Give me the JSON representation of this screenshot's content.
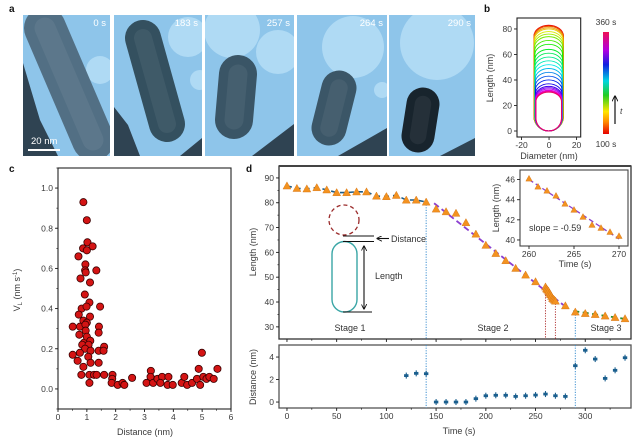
{
  "figure": {
    "panel_a": {
      "label": "a",
      "frames": [
        {
          "time": "0 s"
        },
        {
          "time": "183 s"
        },
        {
          "time": "257 s"
        },
        {
          "time": "264 s"
        },
        {
          "time": "290 s"
        }
      ],
      "scale_bar_label": "20 nm"
    },
    "panel_b": {
      "label": "b"
    },
    "panel_c": {
      "label": "c"
    },
    "panel_d": {
      "label": "d",
      "annotations": {
        "distance": "Distance",
        "length": "Length",
        "stage1": "Stage 1",
        "stage2": "Stage 2",
        "stage3": "Stage 3",
        "slope": "slope = -0.59"
      }
    }
  },
  "colors": {
    "tem_background": "#8ec5ea",
    "scatter_fill": "#d41414",
    "triangle": "#f39220",
    "stage1_line": "#1d5d8a",
    "stage2_fit": "#8b3fd0",
    "stage3_fit": "#2f8f2f",
    "stage_boundary": "#3c8fd0",
    "inset_window": "#b23a3a",
    "distance_marker": "#1a5f8e",
    "capsule": "#3aa6a6",
    "target_circle": "#9b2b2b"
  },
  "chart_data": [
    {
      "id": "b",
      "type": "line",
      "title": "",
      "xlabel": "Diameter (nm)",
      "ylabel": "Length (nm)",
      "xlim": [
        -23.3,
        23
      ],
      "ylim": [
        -4.7,
        88.6
      ],
      "xticks": [
        -20,
        0,
        20
      ],
      "yticks": [
        0,
        20,
        40,
        60,
        80
      ],
      "colorbar": {
        "min": 100,
        "max": 360,
        "min_label": "100 s",
        "max_label": "360 s",
        "arrow_label": "t"
      },
      "contours": [
        {
          "time": 100,
          "length": 83.0,
          "half_width": 11.0
        },
        {
          "time": 110,
          "length": 82.5,
          "half_width": 11.0
        },
        {
          "time": 120,
          "length": 82.0,
          "half_width": 10.9
        },
        {
          "time": 130,
          "length": 81.0,
          "half_width": 10.8
        },
        {
          "time": 140,
          "length": 80.0,
          "half_width": 10.7
        },
        {
          "time": 150,
          "length": 78.0,
          "half_width": 10.6
        },
        {
          "time": 160,
          "length": 76.0,
          "half_width": 10.5
        },
        {
          "time": 170,
          "length": 74.0,
          "half_width": 10.5
        },
        {
          "time": 180,
          "length": 71.0,
          "half_width": 10.4
        },
        {
          "time": 190,
          "length": 68.0,
          "half_width": 10.3
        },
        {
          "time": 200,
          "length": 64.0,
          "half_width": 10.3
        },
        {
          "time": 210,
          "length": 61.0,
          "half_width": 10.2
        },
        {
          "time": 220,
          "length": 58.0,
          "half_width": 10.2
        },
        {
          "time": 230,
          "length": 55.0,
          "half_width": 10.1
        },
        {
          "time": 240,
          "length": 52.0,
          "half_width": 10.1
        },
        {
          "time": 250,
          "length": 49.0,
          "half_width": 10.0
        },
        {
          "time": 260,
          "length": 46.0,
          "half_width": 10.0
        },
        {
          "time": 270,
          "length": 43.0,
          "half_width": 10.0
        },
        {
          "time": 280,
          "length": 40.0,
          "half_width": 9.9
        },
        {
          "time": 290,
          "length": 37.0,
          "half_width": 9.9
        },
        {
          "time": 300,
          "length": 35.0,
          "half_width": 9.8
        },
        {
          "time": 310,
          "length": 34.0,
          "half_width": 9.8
        },
        {
          "time": 320,
          "length": 33.0,
          "half_width": 9.7
        },
        {
          "time": 330,
          "length": 32.0,
          "half_width": 9.7
        },
        {
          "time": 340,
          "length": 31.5,
          "half_width": 9.6
        },
        {
          "time": 350,
          "length": 31.0,
          "half_width": 9.6
        },
        {
          "time": 360,
          "length": 30.5,
          "half_width": 9.5
        }
      ]
    },
    {
      "id": "c",
      "type": "scatter",
      "title": "",
      "xlabel": "Distance (nm)",
      "ylabel": {
        "main": "V",
        "sub": "L",
        "unit": " (nm s",
        "sup": "-1",
        "close": ")"
      },
      "xlim": [
        0,
        6
      ],
      "ylim": [
        -0.1,
        1.1
      ],
      "xticks": [
        0,
        1,
        2,
        3,
        4,
        5,
        6
      ],
      "yticks": [
        0.0,
        0.2,
        0.4,
        0.6,
        0.8,
        1.0
      ],
      "x_minor_step": 0.5,
      "y_minor_step": 0.1,
      "points": [
        [
          0.88,
          0.93
        ],
        [
          1.0,
          0.84
        ],
        [
          1.02,
          0.73
        ],
        [
          1.2,
          0.71
        ],
        [
          0.87,
          0.7
        ],
        [
          1.0,
          0.69
        ],
        [
          0.71,
          0.66
        ],
        [
          0.95,
          0.62
        ],
        [
          0.94,
          0.59
        ],
        [
          1.33,
          0.59
        ],
        [
          0.96,
          0.58
        ],
        [
          0.78,
          0.55
        ],
        [
          1.11,
          0.53
        ],
        [
          0.93,
          0.47
        ],
        [
          1.09,
          0.43
        ],
        [
          1.46,
          0.41
        ],
        [
          0.82,
          0.4
        ],
        [
          0.99,
          0.41
        ],
        [
          0.72,
          0.37
        ],
        [
          1.11,
          0.36
        ],
        [
          0.88,
          0.34
        ],
        [
          1.0,
          0.33
        ],
        [
          0.51,
          0.31
        ],
        [
          0.76,
          0.31
        ],
        [
          1.42,
          0.31
        ],
        [
          0.95,
          0.32
        ],
        [
          0.96,
          0.29
        ],
        [
          1.41,
          0.28
        ],
        [
          0.74,
          0.27
        ],
        [
          1.02,
          0.25
        ],
        [
          0.9,
          0.23
        ],
        [
          1.0,
          0.26
        ],
        [
          1.12,
          0.24
        ],
        [
          0.84,
          0.22
        ],
        [
          1.06,
          0.22
        ],
        [
          0.94,
          0.2
        ],
        [
          1.6,
          0.21
        ],
        [
          1.41,
          0.19
        ],
        [
          1.58,
          0.19
        ],
        [
          1.13,
          0.19
        ],
        [
          0.51,
          0.17
        ],
        [
          0.76,
          0.18
        ],
        [
          1.05,
          0.16
        ],
        [
          0.68,
          0.14
        ],
        [
          1.41,
          0.13
        ],
        [
          1.13,
          0.13
        ],
        [
          0.88,
          0.11
        ],
        [
          0.81,
          0.07
        ],
        [
          1.09,
          0.07
        ],
        [
          1.25,
          0.07
        ],
        [
          1.34,
          0.07
        ],
        [
          1.6,
          0.07
        ],
        [
          1.09,
          0.03
        ],
        [
          1.89,
          0.07
        ],
        [
          1.88,
          0.05
        ],
        [
          1.86,
          0.03
        ],
        [
          2.07,
          0.02
        ],
        [
          2.24,
          0.03
        ],
        [
          2.3,
          0.02
        ],
        [
          2.57,
          0.055
        ],
        [
          3.07,
          0.03
        ],
        [
          3.22,
          0.09
        ],
        [
          3.21,
          0.06
        ],
        [
          3.3,
          0.03
        ],
        [
          3.45,
          0.05
        ],
        [
          3.61,
          0.06
        ],
        [
          3.55,
          0.03
        ],
        [
          3.83,
          0.06
        ],
        [
          3.8,
          0.02
        ],
        [
          3.98,
          0.02
        ],
        [
          4.29,
          0.03
        ],
        [
          4.38,
          0.06
        ],
        [
          4.48,
          0.02
        ],
        [
          4.65,
          0.03
        ],
        [
          4.82,
          0.05
        ],
        [
          4.88,
          0.1
        ],
        [
          4.93,
          0.02
        ],
        [
          4.99,
          0.18
        ],
        [
          5.04,
          0.06
        ],
        [
          5.15,
          0.05
        ],
        [
          5.25,
          0.06
        ],
        [
          5.4,
          0.05
        ],
        [
          5.53,
          0.1
        ]
      ]
    },
    {
      "id": "d-length",
      "type": "line",
      "title": "",
      "xlabel": "Time (s)",
      "ylabel": "Length (nm)",
      "xlim": [
        -8,
        346
      ],
      "ylim": [
        25.1,
        94.8
      ],
      "xticks": [
        0,
        50,
        100,
        150,
        200,
        250,
        300
      ],
      "yticks": [
        30,
        40,
        50,
        60,
        70,
        80,
        90
      ],
      "x_minor_step": 25,
      "y_minor_step": 5,
      "series": [
        {
          "name": "Stage 1",
          "x": [
            0,
            10,
            20,
            30,
            40,
            50,
            60,
            70,
            80,
            90,
            100,
            110,
            120,
            130,
            140
          ],
          "y": [
            86.8,
            85.8,
            85.6,
            86.1,
            85.2,
            84.1,
            84.1,
            84.4,
            84.4,
            82.7,
            82.5,
            83.0,
            81.1,
            81.1,
            80.3
          ]
        },
        {
          "name": "Stage 2",
          "x": [
            150,
            160,
            170,
            180,
            190,
            200,
            210,
            220,
            230,
            240,
            250,
            260,
            261,
            262,
            263,
            264,
            265,
            266,
            267,
            268,
            269,
            270,
            280
          ],
          "y": [
            77.5,
            76.4,
            75.8,
            72.0,
            67.4,
            62.9,
            59.6,
            56.7,
            53.6,
            50.9,
            48.2,
            46.1,
            45.3,
            44.9,
            44.4,
            43.6,
            43.0,
            42.3,
            41.5,
            41.2,
            40.8,
            40.4,
            38.5
          ]
        },
        {
          "name": "Stage 3",
          "x": [
            290,
            300,
            310,
            320,
            330,
            340
          ],
          "y": [
            36.0,
            35.4,
            35.0,
            34.4,
            33.8,
            33.3
          ]
        }
      ],
      "fits": [
        {
          "name": "Stage 2 fit",
          "x": [
            148,
            278
          ],
          "y": [
            79.8,
            38.8
          ]
        },
        {
          "name": "Stage 3 fit",
          "x": [
            288,
            343
          ],
          "y": [
            36.4,
            33.0
          ]
        }
      ],
      "stage_boundaries": [
        140,
        290
      ],
      "inset_window": [
        260,
        270
      ]
    },
    {
      "id": "d-inset",
      "type": "line",
      "title": "",
      "xlabel": "Time (s)",
      "ylabel": "Length (nm)",
      "xlim": [
        259,
        271
      ],
      "ylim": [
        39.4,
        46.95
      ],
      "xticks": [
        260,
        265,
        270
      ],
      "yticks": [
        40,
        42,
        44,
        46
      ],
      "series": [
        {
          "name": "Length",
          "x": [
            260,
            261,
            262,
            263,
            264,
            265,
            266,
            267,
            268,
            269,
            270
          ],
          "y": [
            46.1,
            45.3,
            44.9,
            44.4,
            43.6,
            43.0,
            42.3,
            41.5,
            41.2,
            40.8,
            40.4
          ]
        }
      ],
      "fit": {
        "slope": -0.59,
        "x": [
          260,
          270
        ],
        "y": [
          46.0,
          40.1
        ]
      }
    },
    {
      "id": "d-distance",
      "type": "scatter",
      "title": "",
      "xlabel": "Time (s)",
      "ylabel": "Distance (nm)",
      "xlim": [
        -8,
        346
      ],
      "ylim": [
        -0.53,
        5.07
      ],
      "xticks": [
        0,
        50,
        100,
        150,
        200,
        250,
        300
      ],
      "yticks": [
        0,
        2,
        4
      ],
      "x_minor_step": 25,
      "x": [
        120,
        130,
        140,
        150,
        160,
        170,
        180,
        190,
        200,
        210,
        220,
        230,
        240,
        250,
        260,
        270,
        280,
        290,
        300,
        310,
        320,
        330,
        340
      ],
      "y": [
        2.35,
        2.55,
        2.52,
        0.0,
        0.0,
        0.0,
        0.0,
        0.3,
        0.56,
        0.6,
        0.6,
        0.5,
        0.56,
        0.62,
        0.71,
        0.56,
        0.5,
        3.23,
        4.6,
        3.82,
        2.1,
        2.82,
        3.94
      ]
    }
  ]
}
